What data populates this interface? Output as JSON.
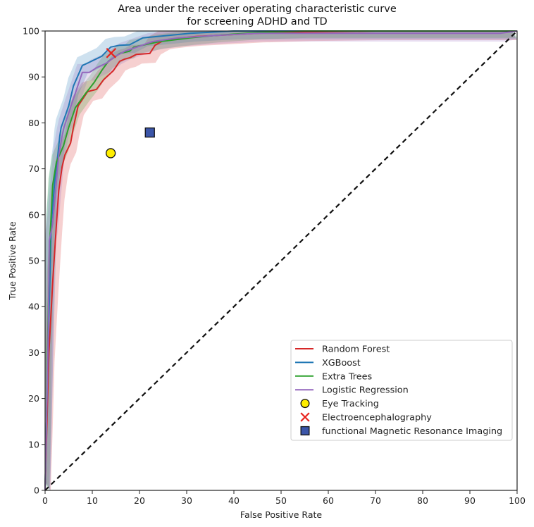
{
  "chart_data": {
    "type": "line",
    "title": [
      "Area under the receiver operating characteristic curve",
      "for screening ADHD and TD"
    ],
    "xlabel": "False Positive Rate",
    "ylabel": "True Positive Rate",
    "xlim": [
      0,
      100
    ],
    "ylim": [
      0,
      100
    ],
    "xticks": [
      0,
      10,
      20,
      30,
      40,
      50,
      60,
      70,
      80,
      90,
      100
    ],
    "yticks": [
      0,
      10,
      20,
      30,
      40,
      50,
      60,
      70,
      80,
      90,
      100
    ],
    "grid": false,
    "legend_position": "lower-right",
    "series": [
      {
        "name": "Random Forest",
        "color": "#d62728",
        "band": 2.0,
        "points": [
          [
            0,
            0
          ],
          [
            0.4,
            15
          ],
          [
            0.8,
            30
          ],
          [
            1.6,
            45
          ],
          [
            2.4,
            58
          ],
          [
            2.9,
            65.3
          ],
          [
            3.6,
            70.4
          ],
          [
            4.2,
            73
          ],
          [
            5.4,
            75.6
          ],
          [
            6,
            79
          ],
          [
            7,
            83.7
          ],
          [
            9,
            86.8
          ],
          [
            10.9,
            87.3
          ],
          [
            12.4,
            89.4
          ],
          [
            14.5,
            91.4
          ],
          [
            15.8,
            93.4
          ],
          [
            16.9,
            93.9
          ],
          [
            18,
            94.2
          ],
          [
            19.3,
            94.9
          ],
          [
            22.2,
            95.1
          ],
          [
            23.3,
            96.9
          ],
          [
            25.2,
            98
          ],
          [
            26.3,
            98.2
          ],
          [
            28.8,
            98.5
          ],
          [
            32,
            98.8
          ],
          [
            35.7,
            99
          ],
          [
            45,
            99.5
          ],
          [
            55,
            99.8
          ],
          [
            70,
            100
          ],
          [
            100,
            100
          ]
        ]
      },
      {
        "name": "XGBoost",
        "color": "#1f77b4",
        "band": 1.8,
        "points": [
          [
            0,
            0
          ],
          [
            0.3,
            15
          ],
          [
            0.6,
            30
          ],
          [
            1.0,
            45
          ],
          [
            1.2,
            53.5
          ],
          [
            1.3,
            58
          ],
          [
            2.1,
            68
          ],
          [
            2.7,
            73
          ],
          [
            3.1,
            77.1
          ],
          [
            3.4,
            79
          ],
          [
            5,
            83.7
          ],
          [
            6,
            88
          ],
          [
            7.9,
            92.5
          ],
          [
            9,
            93
          ],
          [
            12,
            94.5
          ],
          [
            13.9,
            96.5
          ],
          [
            15.8,
            96.9
          ],
          [
            17.9,
            97
          ],
          [
            20.7,
            98.5
          ],
          [
            25.8,
            99
          ],
          [
            30.7,
            99.5
          ],
          [
            40,
            100
          ],
          [
            100,
            100
          ]
        ]
      },
      {
        "name": "Extra Trees",
        "color": "#2ca02c",
        "band": 1.5,
        "points": [
          [
            0,
            0
          ],
          [
            0.3,
            15
          ],
          [
            0.5,
            30
          ],
          [
            0.8,
            45
          ],
          [
            1.0,
            54
          ],
          [
            1.2,
            58
          ],
          [
            1.6,
            66.4
          ],
          [
            2.4,
            71.5
          ],
          [
            3.9,
            75
          ],
          [
            5,
            79
          ],
          [
            6.4,
            83.3
          ],
          [
            8.5,
            86.3
          ],
          [
            10.4,
            88.8
          ],
          [
            12,
            91.4
          ],
          [
            13.4,
            93.4
          ],
          [
            15,
            94.5
          ],
          [
            15.8,
            95.1
          ],
          [
            17.9,
            95.6
          ],
          [
            18.8,
            96.5
          ],
          [
            24.3,
            97.7
          ],
          [
            30.7,
            98.5
          ],
          [
            35.7,
            99
          ],
          [
            45,
            99.7
          ],
          [
            55,
            100
          ],
          [
            100,
            100
          ]
        ]
      },
      {
        "name": "Logistic Regression",
        "color": "#9467bd",
        "band": 1.8,
        "points": [
          [
            0,
            0
          ],
          [
            0.3,
            15
          ],
          [
            0.6,
            30
          ],
          [
            0.8,
            45
          ],
          [
            0.9,
            54.3
          ],
          [
            1.6,
            58
          ],
          [
            2.9,
            73
          ],
          [
            3.6,
            77.1
          ],
          [
            4,
            79
          ],
          [
            5.5,
            83.7
          ],
          [
            7.9,
            91
          ],
          [
            9.4,
            91
          ],
          [
            10.9,
            92
          ],
          [
            13,
            93
          ],
          [
            14.9,
            94.5
          ],
          [
            16.9,
            95.6
          ],
          [
            22.8,
            97.7
          ],
          [
            28.2,
            98.5
          ],
          [
            35.7,
            99
          ],
          [
            45,
            99.5
          ],
          [
            96.4,
            99.5
          ],
          [
            100,
            100
          ]
        ]
      }
    ],
    "markers": [
      {
        "name": "Eye Tracking",
        "shape": "circle",
        "color": "#ffee00",
        "x": 13.9,
        "y": 73.4
      },
      {
        "name": "Electroencephalography",
        "shape": "x",
        "color": "#e8221c",
        "x": 14.0,
        "y": 95.2
      },
      {
        "name": "functional Magnetic Resonance Imaging",
        "shape": "square",
        "color": "#3b55a8",
        "x": 22.2,
        "y": 77.9
      }
    ],
    "reference_line": {
      "type": "diagonal",
      "style": "dashed",
      "color": "#111111",
      "from": [
        0,
        0
      ],
      "to": [
        100,
        100
      ]
    },
    "legend": [
      "Random Forest",
      "XGBoost",
      "Extra Trees",
      "Logistic Regression",
      "Eye Tracking",
      "Electroencephalography",
      "functional Magnetic Resonance Imaging"
    ]
  }
}
